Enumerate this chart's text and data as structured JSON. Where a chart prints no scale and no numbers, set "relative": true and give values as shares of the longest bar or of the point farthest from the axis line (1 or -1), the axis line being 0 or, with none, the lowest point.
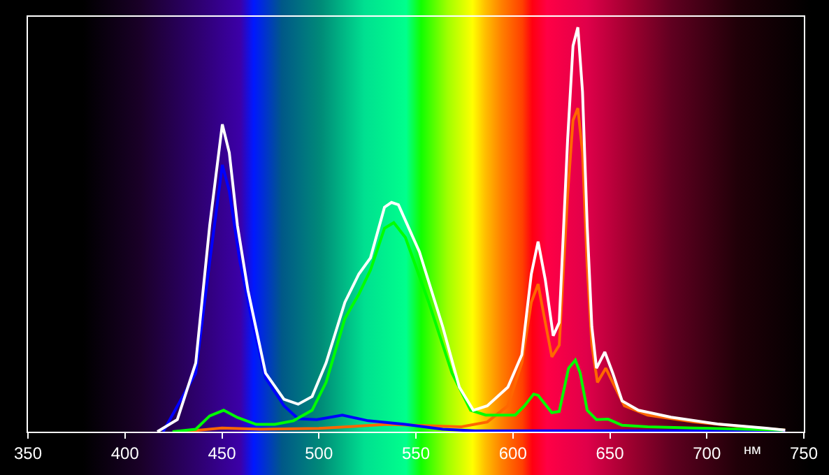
{
  "chart_data": {
    "type": "line",
    "relative": true,
    "xlabel": "нм",
    "xlim": [
      350,
      750
    ],
    "xticks": [
      350,
      400,
      450,
      500,
      550,
      600,
      650,
      700,
      750
    ],
    "tick_labels": "x",
    "marker": "none",
    "line_style": "solid",
    "series": [
      {
        "color": "#ff6600",
        "x": [
          430,
          450,
          470,
          500,
          535,
          573.4,
          586.8,
          597.4,
          604.6,
          609.5,
          613,
          616.7,
          620.1,
          623.9,
          628.2,
          631,
          633.5,
          635.9,
          638.3,
          640.7,
          643.6,
          647.9,
          652.7,
          657.5,
          669.5,
          693.5,
          727,
          740.4
        ],
        "values": [
          0,
          0.009,
          0.006,
          0.008,
          0.018,
          0.012,
          0.024,
          0.064,
          0.17,
          0.32,
          0.365,
          0.27,
          0.185,
          0.214,
          0.584,
          0.77,
          0.8,
          0.69,
          0.41,
          0.214,
          0.122,
          0.157,
          0.11,
          0.064,
          0.041,
          0.024,
          0.009,
          0.004
        ]
      },
      {
        "color": "#0000ff",
        "x": [
          419.7,
          436.5,
          443.7,
          450.2,
          453.8,
          459.3,
          465.3,
          472.5,
          482,
          489.3,
          498.9,
          512.1,
          525.4,
          544.6,
          563.8,
          580.6,
          740.4
        ],
        "values": [
          0,
          0.145,
          0.42,
          0.66,
          0.595,
          0.42,
          0.28,
          0.133,
          0.064,
          0.032,
          0.03,
          0.041,
          0.027,
          0.018,
          0.006,
          0.002,
          0.002
        ]
      },
      {
        "color": "#00ff00",
        "x": [
          424.5,
          436.5,
          443.7,
          450.9,
          458,
          467.7,
          477.3,
          486.9,
          496.5,
          503.7,
          513.4,
          520.6,
          526.6,
          533.8,
          538.6,
          544.6,
          556.6,
          568.6,
          578.2,
          586,
          601.2,
          606,
          610.7,
          613,
          620.1,
          623.9,
          628.7,
          632.2,
          634.7,
          638.3,
          643.1,
          649.1,
          656.3,
          669.5,
          693.5,
          739.2
        ],
        "values": [
          0,
          0.006,
          0.039,
          0.053,
          0.035,
          0.018,
          0.018,
          0.027,
          0.053,
          0.122,
          0.28,
          0.34,
          0.4,
          0.503,
          0.517,
          0.48,
          0.32,
          0.145,
          0.053,
          0.041,
          0.041,
          0.064,
          0.093,
          0.09,
          0.047,
          0.05,
          0.157,
          0.177,
          0.145,
          0.053,
          0.03,
          0.031,
          0.016,
          0.012,
          0.009,
          0.004
        ]
      },
      {
        "color": "#ffffff",
        "x": [
          416.7,
          427,
          436.5,
          443.7,
          450.2,
          453.8,
          458,
          463.4,
          472.5,
          482,
          489.3,
          496.5,
          503.7,
          513.4,
          520.6,
          526.6,
          533.8,
          537.4,
          541,
          551.8,
          563.8,
          572.4,
          579.6,
          586.8,
          597.4,
          604.6,
          609.5,
          613,
          616.7,
          620.8,
          623.9,
          628.2,
          631,
          633.5,
          635.9,
          638.3,
          640.7,
          643.1,
          647.4,
          651.5,
          656.3,
          664.7,
          681.5,
          705.5,
          729.6,
          740.4
        ],
        "values": [
          0,
          0.03,
          0.17,
          0.51,
          0.76,
          0.69,
          0.51,
          0.35,
          0.145,
          0.08,
          0.068,
          0.087,
          0.17,
          0.32,
          0.39,
          0.43,
          0.555,
          0.567,
          0.561,
          0.445,
          0.26,
          0.11,
          0.053,
          0.064,
          0.11,
          0.19,
          0.39,
          0.47,
          0.376,
          0.237,
          0.27,
          0.72,
          0.954,
          1,
          0.84,
          0.51,
          0.26,
          0.157,
          0.197,
          0.145,
          0.076,
          0.053,
          0.036,
          0.019,
          0.009,
          0.004
        ]
      }
    ]
  }
}
